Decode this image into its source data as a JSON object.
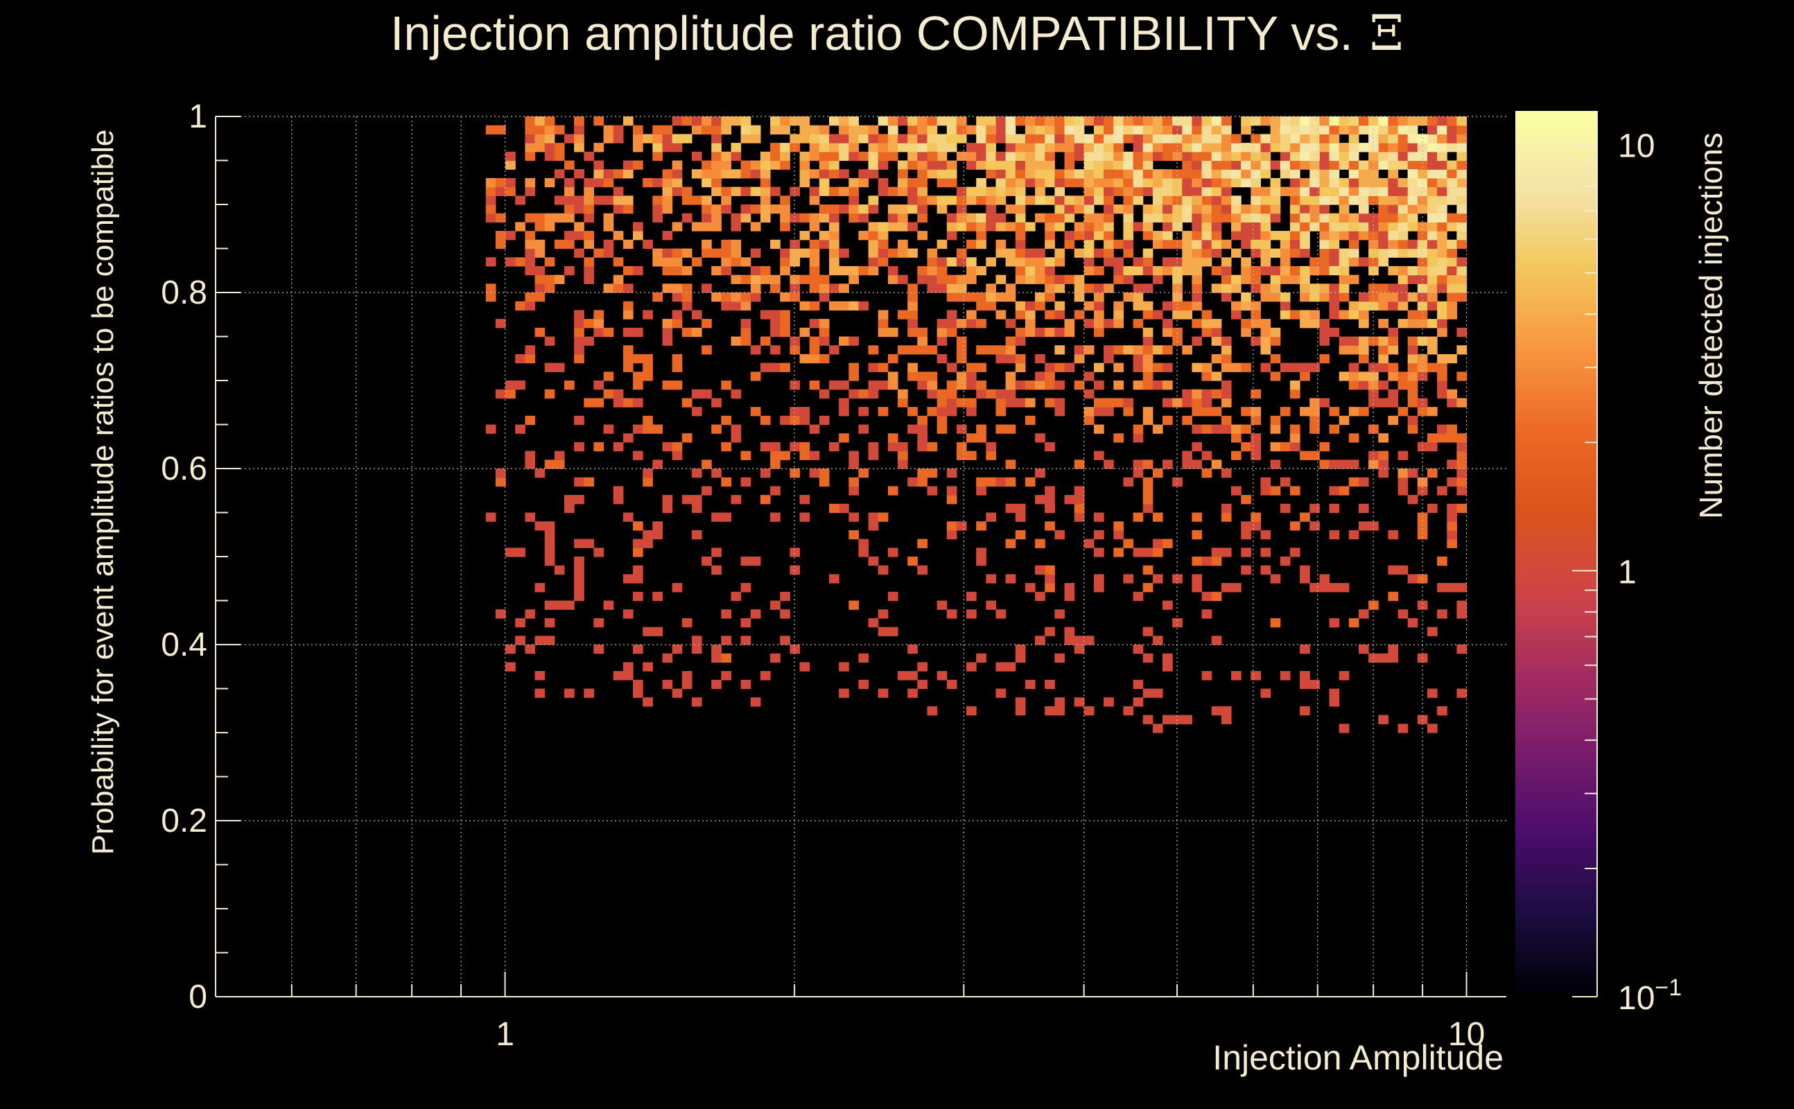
{
  "chart_data": {
    "type": "heatmap",
    "title": "Injection amplitude ratio COMPATIBILITY vs.",
    "title_symbol": "Ξ",
    "xlabel": "Injection Amplitude",
    "ylabel": "Probability for event amplitude ratios to be compatible",
    "colorbar_label": "Number detected injections",
    "x_scale": "log",
    "xlim": [
      0.5,
      11
    ],
    "ylim": [
      0,
      1
    ],
    "z_scale": "log",
    "zlim": [
      0.1,
      12
    ],
    "x_tick_labels": [
      "1",
      "10"
    ],
    "x_ticks": [
      1,
      10
    ],
    "y_tick_labels": [
      "0",
      "0.2",
      "0.4",
      "0.6",
      "0.8",
      "1"
    ],
    "y_ticks": [
      0,
      0.2,
      0.4,
      0.6,
      0.8,
      1
    ],
    "z_tick_labels": [
      "10^{-1}",
      "1",
      "10"
    ],
    "z_ticks": [
      0.1,
      1,
      10
    ],
    "grid": true,
    "colormap": "inferno",
    "colors": {
      "background": "#000000",
      "text": "#f5ecd0",
      "grid": "#bdbdbd",
      "colormap_stops": [
        "#000004",
        "#1b0c41",
        "#4a0c6b",
        "#781c6d",
        "#a52c60",
        "#cf4446",
        "#d9541c",
        "#ed6925",
        "#f89540",
        "#f3c65a",
        "#f5e4a8",
        "#fcffa4"
      ]
    },
    "bins": {
      "x_edges_log10": [
        -0.02,
        1.0
      ],
      "n_x": 100,
      "n_y": 100,
      "description_of_density": "Counts range 1 to ~10; density increases with injection amplitude and probability; occupied region x≈0.95–10, y≈0.3–1.0",
      "cells": [
        [
          1.01,
          0.95,
          1
        ],
        [
          1.01,
          0.83,
          1
        ],
        [
          1.15,
          0.98,
          2
        ],
        [
          1.2,
          0.93,
          1
        ],
        [
          1.25,
          0.9,
          1
        ],
        [
          1.3,
          0.98,
          1
        ],
        [
          1.35,
          0.8,
          1
        ],
        [
          1.4,
          0.77,
          1
        ],
        [
          1.12,
          0.52,
          1
        ],
        [
          1.25,
          0.5,
          1
        ],
        [
          1.3,
          0.57,
          1
        ],
        [
          1.55,
          0.42,
          1
        ],
        [
          1.6,
          0.4,
          1
        ],
        [
          1.7,
          0.38,
          2
        ],
        [
          1.9,
          0.38,
          1
        ],
        [
          2.05,
          0.62,
          2
        ],
        [
          2.2,
          0.55,
          2
        ],
        [
          2.3,
          0.7,
          2
        ],
        [
          2.5,
          0.85,
          2
        ],
        [
          2.6,
          0.93,
          2
        ],
        [
          2.8,
          0.95,
          2
        ],
        [
          3.0,
          0.88,
          3
        ],
        [
          3.2,
          0.98,
          3
        ],
        [
          3.4,
          0.72,
          2
        ],
        [
          3.5,
          0.65,
          2
        ],
        [
          3.7,
          0.55,
          1
        ],
        [
          3.9,
          0.46,
          1
        ],
        [
          4.0,
          0.4,
          1
        ],
        [
          4.2,
          0.33,
          1
        ],
        [
          4.5,
          0.35,
          1
        ],
        [
          4.7,
          0.31,
          1
        ],
        [
          4.8,
          0.3,
          1
        ],
        [
          5.0,
          0.8,
          3
        ],
        [
          5.3,
          0.9,
          4
        ],
        [
          5.6,
          0.95,
          4
        ],
        [
          6.0,
          0.85,
          5
        ],
        [
          6.3,
          0.92,
          5
        ],
        [
          6.5,
          0.97,
          6
        ],
        [
          6.8,
          0.88,
          6
        ],
        [
          7.0,
          0.95,
          7
        ],
        [
          7.3,
          0.82,
          6
        ],
        [
          7.6,
          0.9,
          8
        ],
        [
          8.0,
          0.96,
          8
        ],
        [
          8.3,
          0.86,
          7
        ],
        [
          8.7,
          0.93,
          9
        ],
        [
          9.0,
          0.97,
          10
        ],
        [
          9.3,
          0.88,
          8
        ],
        [
          9.6,
          0.92,
          7
        ],
        [
          9.8,
          0.8,
          5
        ],
        [
          7.0,
          0.35,
          1
        ],
        [
          7.3,
          0.33,
          1
        ],
        [
          9.8,
          0.39,
          1
        ],
        [
          5.5,
          0.4,
          1
        ],
        [
          5.8,
          0.36,
          1
        ],
        [
          6.2,
          0.5,
          1
        ]
      ]
    }
  }
}
